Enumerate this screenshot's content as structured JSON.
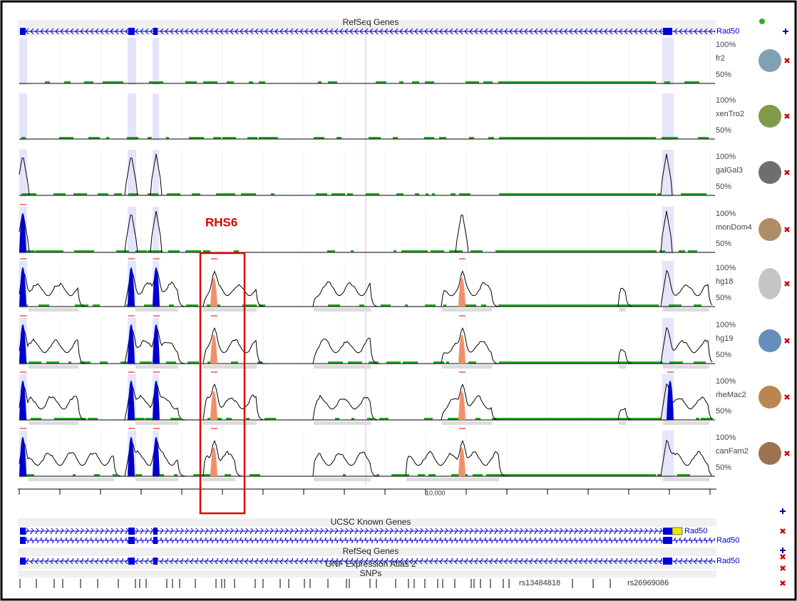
{
  "top_track": {
    "title": "RefSeq Genes",
    "gene": "Rad50"
  },
  "species": [
    {
      "high": "100%",
      "name": "fr2",
      "low": "50%"
    },
    {
      "high": "100%",
      "name": "xenTro2",
      "low": "50%"
    },
    {
      "high": "100%",
      "name": "galGal3",
      "low": "50%"
    },
    {
      "high": "100%",
      "name": "monDom4",
      "low": "50%"
    },
    {
      "high": "100%",
      "name": "hg18",
      "low": "50%"
    },
    {
      "high": "100%",
      "name": "hg19",
      "low": "50%"
    },
    {
      "high": "100%",
      "name": "rheMac2",
      "low": "50%"
    },
    {
      "high": "100%",
      "name": "canFam2",
      "low": "50%"
    }
  ],
  "annotation": "RHS6",
  "ruler": {
    "label": "10,000"
  },
  "bottom_tracks": {
    "known_genes": {
      "title": "UCSC Known Genes",
      "genes": [
        "Rad50",
        "Rad50"
      ]
    },
    "refseq": {
      "title": "RefSeq Genes",
      "gene": "Rad50"
    },
    "gnf": {
      "title": "GNF Expression Atlas 2"
    },
    "snps": {
      "title": "SNPs",
      "labels": [
        "rs13484818",
        "rs26969086"
      ]
    }
  }
}
